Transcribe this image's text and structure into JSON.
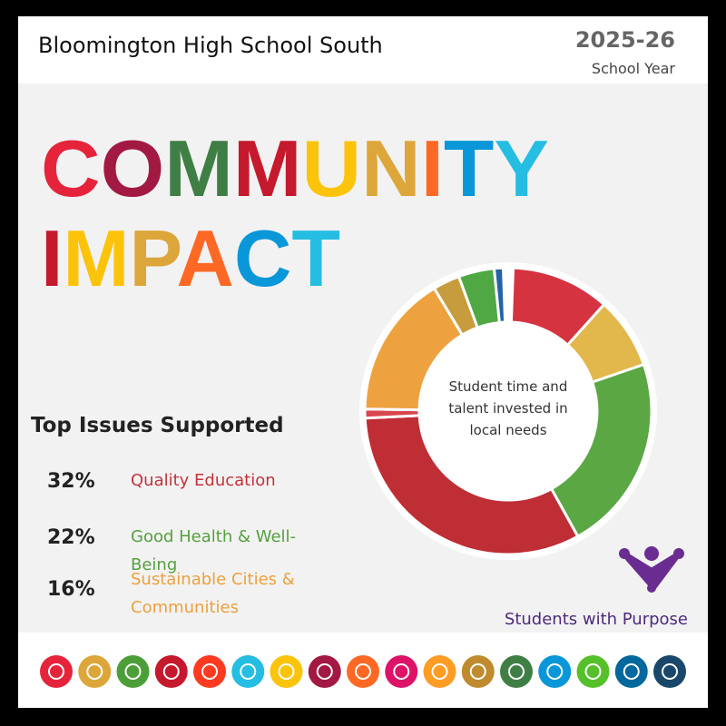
{
  "header": {
    "school": "Bloomington High School South",
    "year": "2025-26",
    "year_label": "School Year"
  },
  "title": {
    "line1": "COMMUNITY",
    "line2": "IMPACT"
  },
  "donut": {
    "center_text": "Student time and talent invested in local needs",
    "segments": [
      {
        "value": 11,
        "color": "#d63341"
      },
      {
        "value": 8,
        "color": "#e2b84c"
      },
      {
        "value": 22,
        "color": "#5aa744"
      },
      {
        "value": 32,
        "color": "#bf2d35"
      },
      {
        "value": 1,
        "color": "#d8464e"
      },
      {
        "value": 16,
        "color": "#eda23f"
      },
      {
        "value": 3,
        "color": "#c79c3c"
      },
      {
        "value": 4,
        "color": "#4fa844"
      },
      {
        "value": 1,
        "color": "#2563a8"
      }
    ]
  },
  "top_issues": {
    "heading": "Top Issues Supported",
    "items": [
      {
        "percent": "32%",
        "label": "Quality Education",
        "color": "#c4323b"
      },
      {
        "percent": "22%",
        "label": "Good Health & Well-Being",
        "color": "#56a03e"
      },
      {
        "percent": "16%",
        "label": "Sustainable Cities & Communities",
        "color": "#eba13c"
      }
    ]
  },
  "brand": "Students with Purpose"
}
